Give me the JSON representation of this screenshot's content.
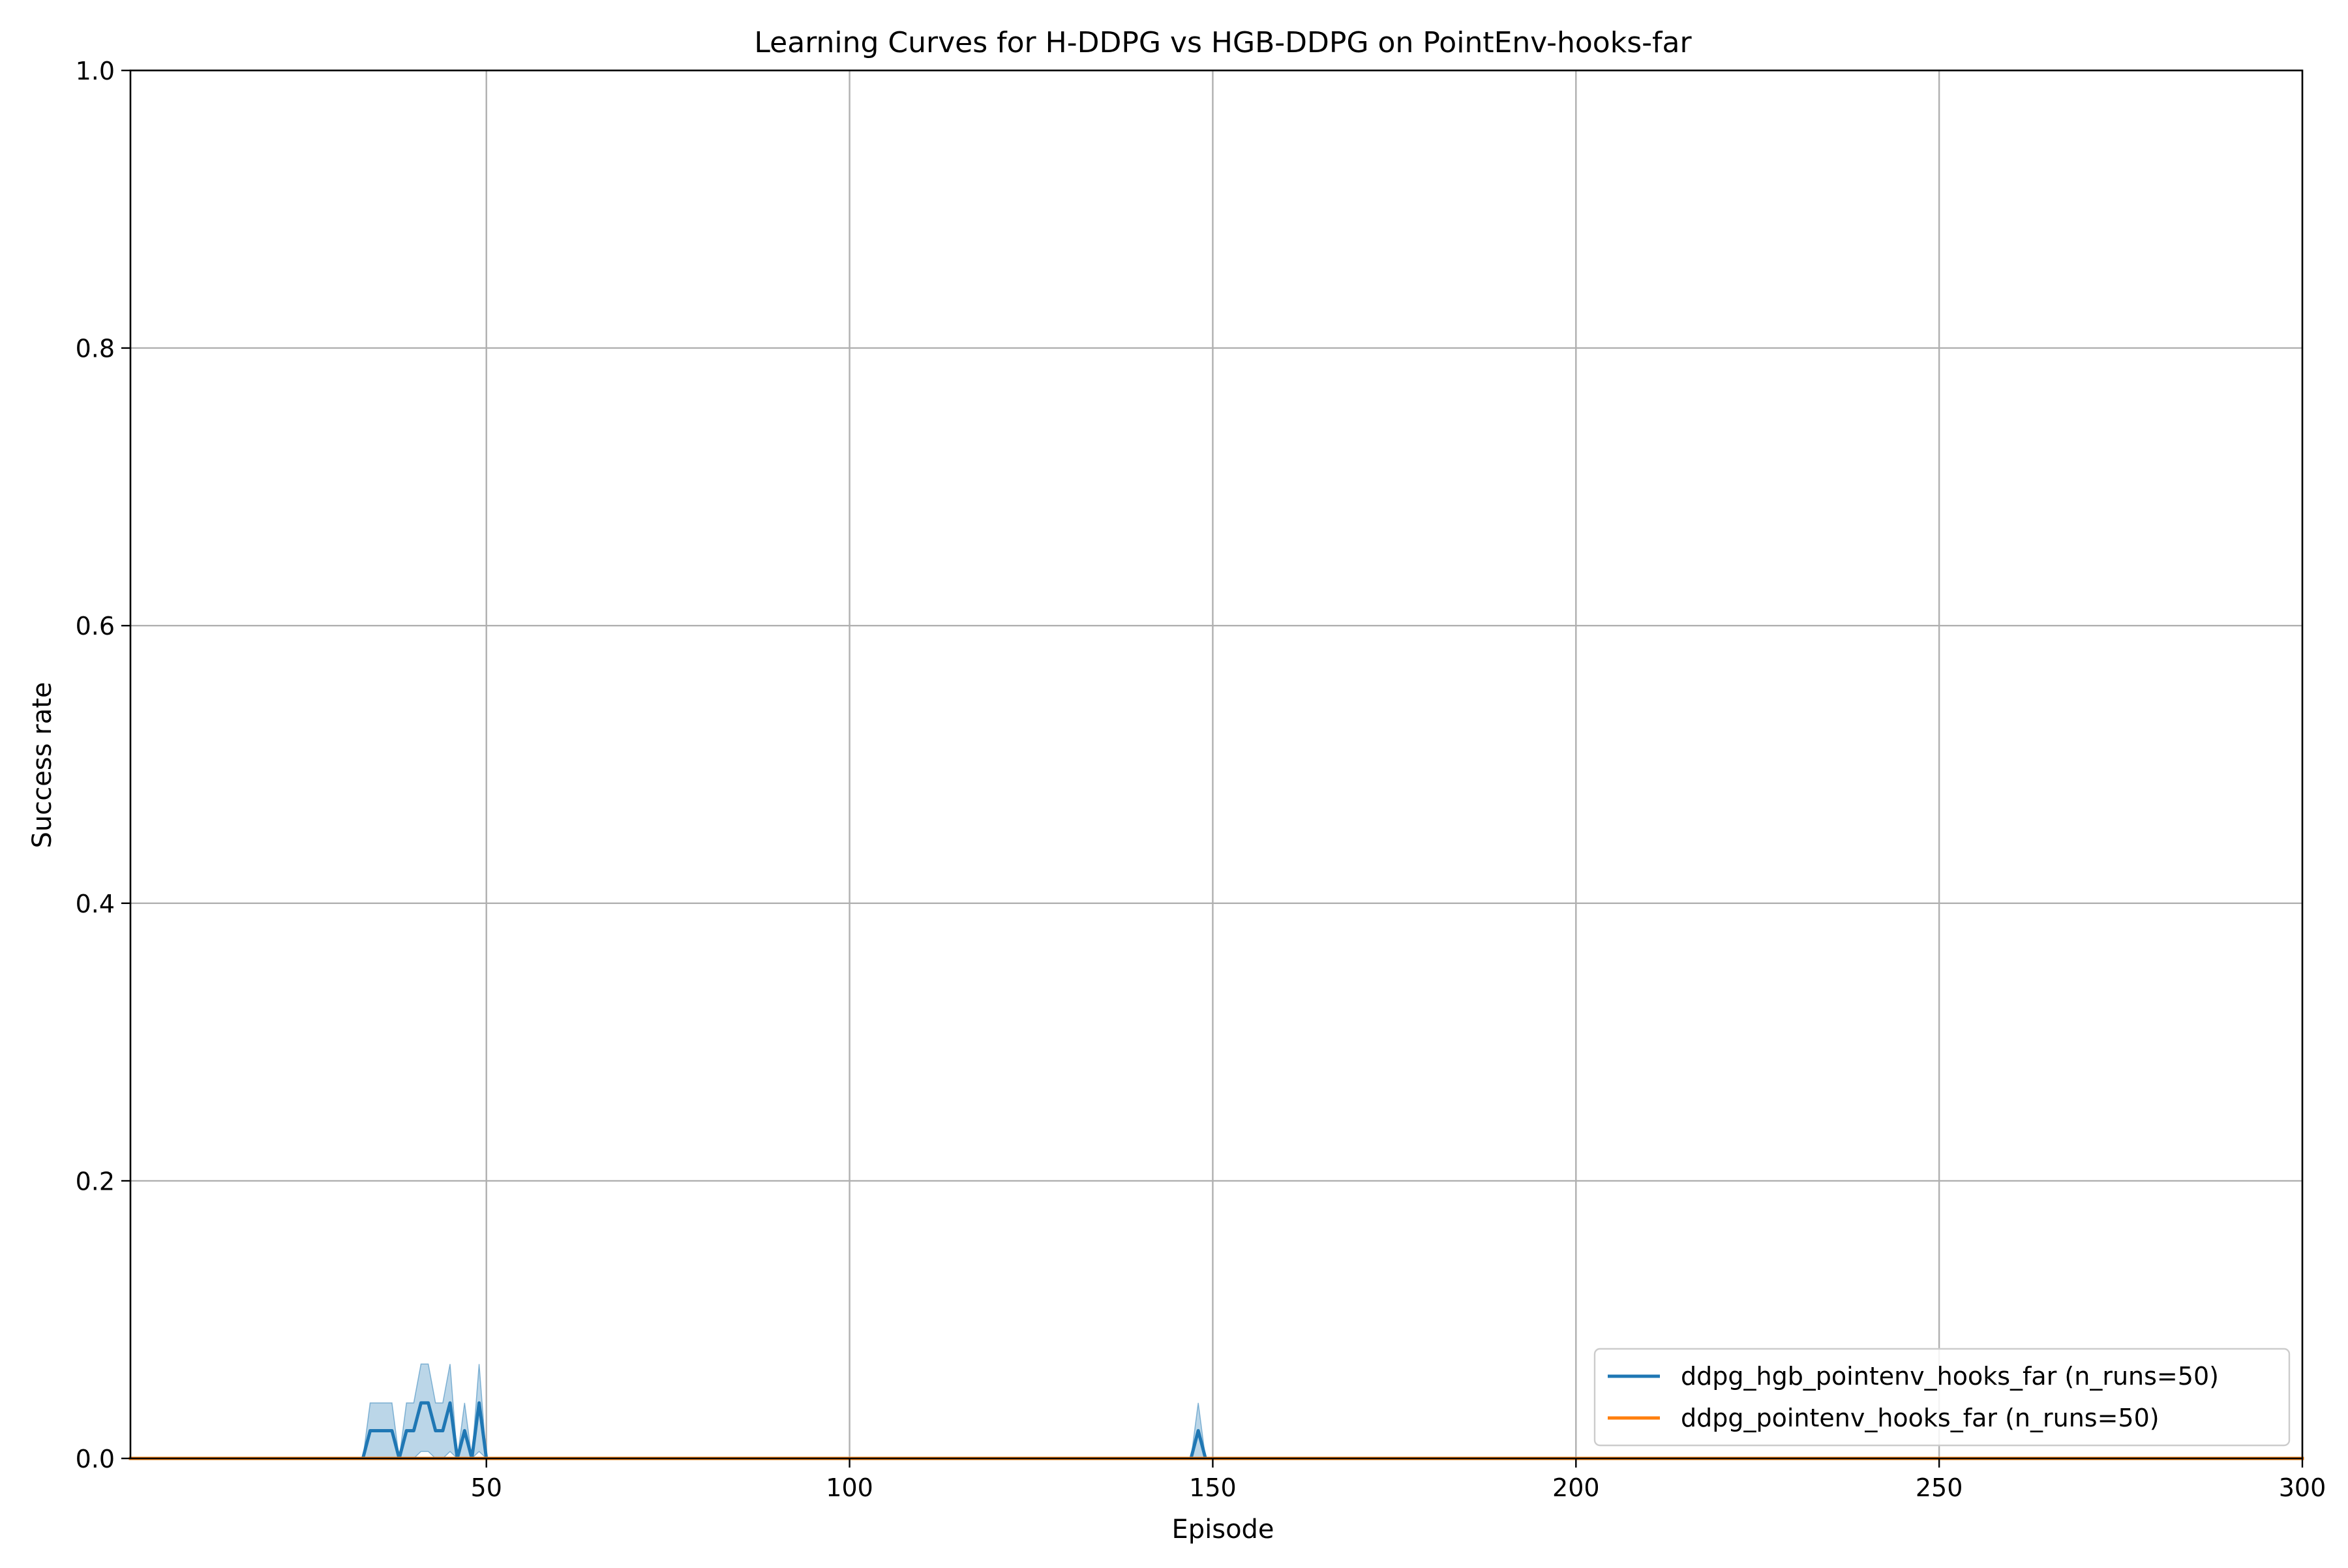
{
  "chart_data": {
    "type": "line",
    "title": "Learning Curves for H-DDPG vs HGB-DDPG on PointEnv-hooks-far",
    "xlabel": "Episode",
    "ylabel": "Success rate",
    "xlim": [
      1,
      300
    ],
    "ylim": [
      0.0,
      1.0
    ],
    "xticks": [
      50,
      100,
      150,
      200,
      250,
      300
    ],
    "xtick_labels": [
      "50",
      "100",
      "150",
      "200",
      "250",
      "300"
    ],
    "yticks": [
      0.0,
      0.2,
      0.4,
      0.6,
      0.8,
      1.0
    ],
    "ytick_labels": [
      "0.0",
      "0.2",
      "0.4",
      "0.6",
      "0.8",
      "1.0"
    ],
    "grid": true,
    "legend_position": "lower-right",
    "series": [
      {
        "name": "ddpg_hgb_pointenv_hooks_far (n_runs=50)",
        "color": "#1f77b4",
        "band_color": "#1f77b4",
        "band_opacity": 0.3,
        "x": [
          1,
          33,
          34,
          35,
          36,
          37,
          38,
          39,
          40,
          41,
          42,
          43,
          44,
          45,
          46,
          47,
          48,
          49,
          50,
          147,
          148,
          149,
          300
        ],
        "y": [
          0,
          0,
          0.02,
          0.02,
          0.02,
          0.02,
          0,
          0.02,
          0.02,
          0.04,
          0.04,
          0.02,
          0.02,
          0.04,
          0,
          0.02,
          0,
          0.04,
          0,
          0,
          0.02,
          0,
          0
        ],
        "y_upper": [
          0,
          0,
          0.04,
          0.04,
          0.04,
          0.04,
          0,
          0.04,
          0.04,
          0.068,
          0.068,
          0.04,
          0.04,
          0.068,
          0,
          0.04,
          0,
          0.068,
          0,
          0,
          0.04,
          0,
          0
        ],
        "y_lower": [
          0,
          0,
          0,
          0,
          0,
          0,
          0,
          0,
          0,
          0.005,
          0.005,
          0,
          0,
          0.005,
          0,
          0,
          0,
          0.005,
          0,
          0,
          0,
          0,
          0
        ]
      },
      {
        "name": "ddpg_pointenv_hooks_far (n_runs=50)",
        "color": "#ff7f0e",
        "x": [
          1,
          300
        ],
        "y": [
          0,
          0
        ]
      }
    ]
  }
}
